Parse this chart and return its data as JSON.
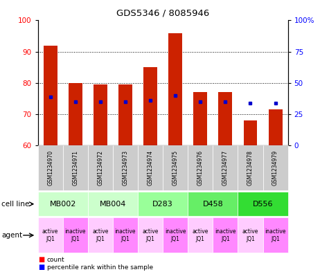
{
  "title": "GDS5346 / 8085946",
  "samples": [
    "GSM1234970",
    "GSM1234971",
    "GSM1234972",
    "GSM1234973",
    "GSM1234974",
    "GSM1234975",
    "GSM1234976",
    "GSM1234977",
    "GSM1234978",
    "GSM1234979"
  ],
  "bar_heights": [
    92,
    80,
    79.5,
    79.5,
    85,
    96,
    77,
    77,
    68,
    71.5
  ],
  "blue_marker_y": [
    75.5,
    74,
    74,
    74,
    74.5,
    76,
    74,
    74,
    73.5,
    73.5
  ],
  "ylim_left": [
    60,
    100
  ],
  "yticks_left": [
    60,
    70,
    80,
    90,
    100
  ],
  "ytick_labels_right": [
    "0",
    "25",
    "50",
    "75",
    "100%"
  ],
  "bar_color": "#cc2200",
  "blue_color": "#0000cc",
  "bar_width": 0.55,
  "cell_line_groups": [
    {
      "label": "MB002",
      "start": 0,
      "end": 2,
      "color": "#ccffcc"
    },
    {
      "label": "MB004",
      "start": 2,
      "end": 4,
      "color": "#ccffcc"
    },
    {
      "label": "D283",
      "start": 4,
      "end": 6,
      "color": "#99ff99"
    },
    {
      "label": "D458",
      "start": 6,
      "end": 8,
      "color": "#66ee66"
    },
    {
      "label": "D556",
      "start": 8,
      "end": 10,
      "color": "#33dd33"
    }
  ],
  "agent_colors": [
    "#ffccff",
    "#ff88ff"
  ],
  "sample_box_color": "#cccccc",
  "background_color": "#ffffff"
}
